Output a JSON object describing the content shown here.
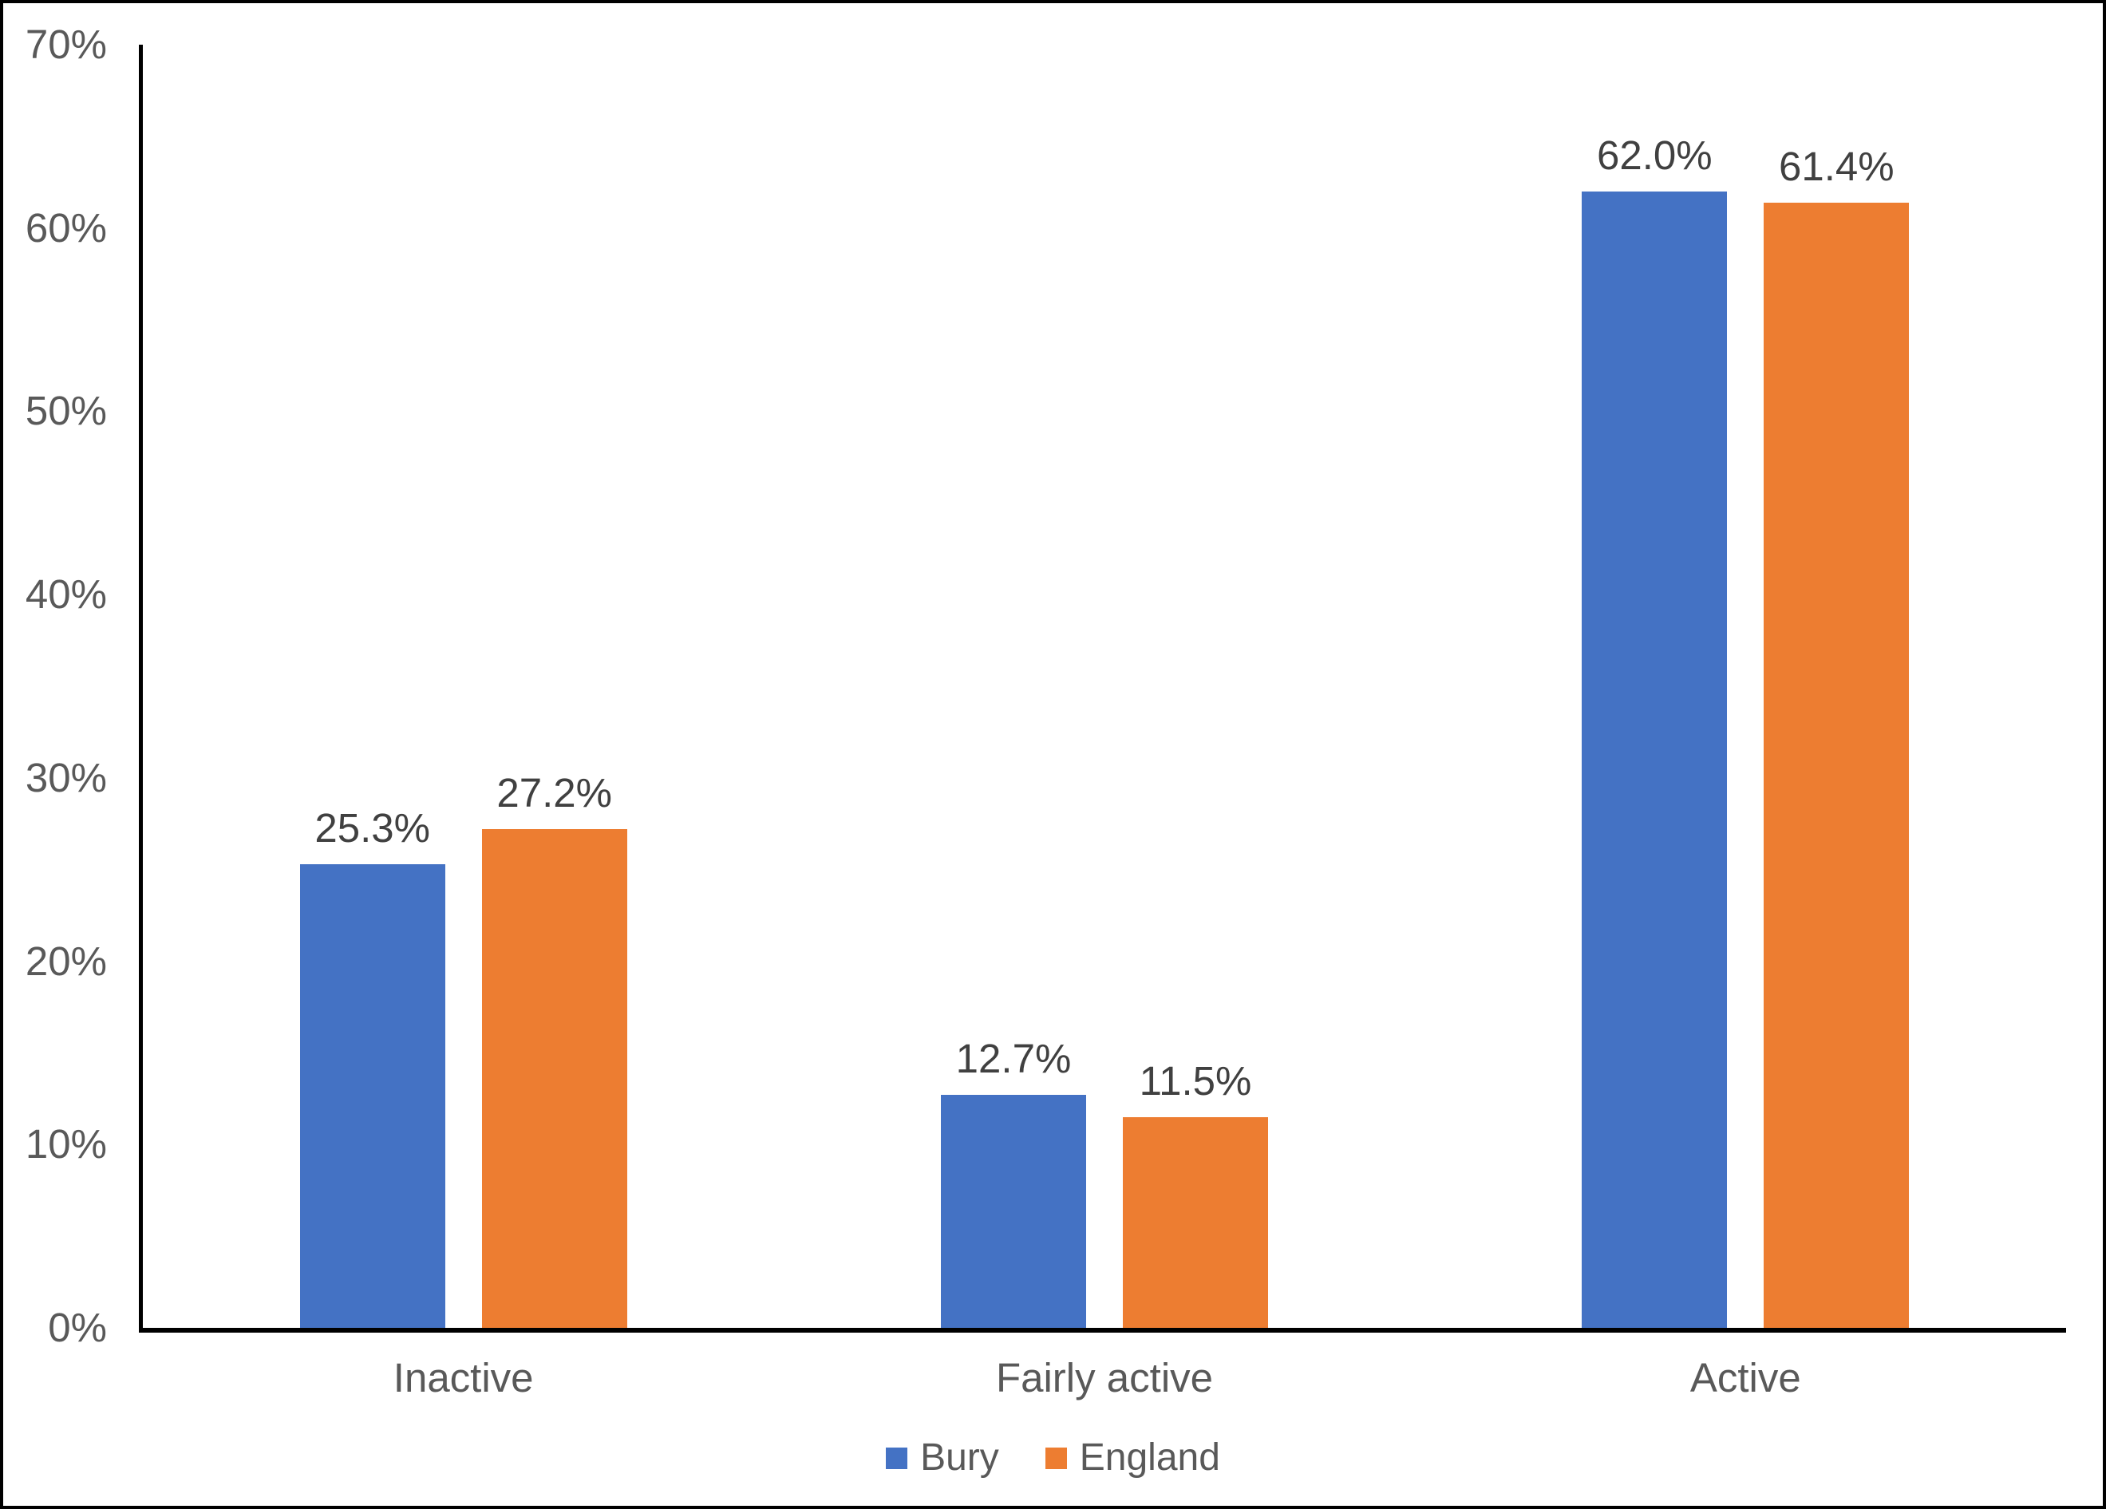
{
  "chart_data": {
    "type": "bar",
    "title": "",
    "xlabel": "",
    "ylabel": "",
    "categories": [
      "Inactive",
      "Fairly active",
      "Active"
    ],
    "series": [
      {
        "name": "Bury",
        "color": "#4472C4",
        "values": [
          25.3,
          12.7,
          62.0
        ],
        "labels": [
          "25.3%",
          "12.7%",
          "62.0%"
        ]
      },
      {
        "name": "England",
        "color": "#ED7D31",
        "values": [
          27.2,
          11.5,
          61.4
        ],
        "labels": [
          "27.2%",
          "11.5%",
          "61.4%"
        ]
      }
    ],
    "ylim": [
      0,
      70
    ],
    "yticks": [
      "0%",
      "10%",
      "20%",
      "30%",
      "40%",
      "50%",
      "60%",
      "70%"
    ],
    "grid": false,
    "legend_position": "bottom-center"
  },
  "colors": {
    "background": "#FFFFFF",
    "border": "#000000",
    "axis_line": "#000000",
    "tick_label": "#595959",
    "category_label": "#595959",
    "data_label": "#404040",
    "bury": "#4472C4",
    "england": "#ED7D31"
  }
}
